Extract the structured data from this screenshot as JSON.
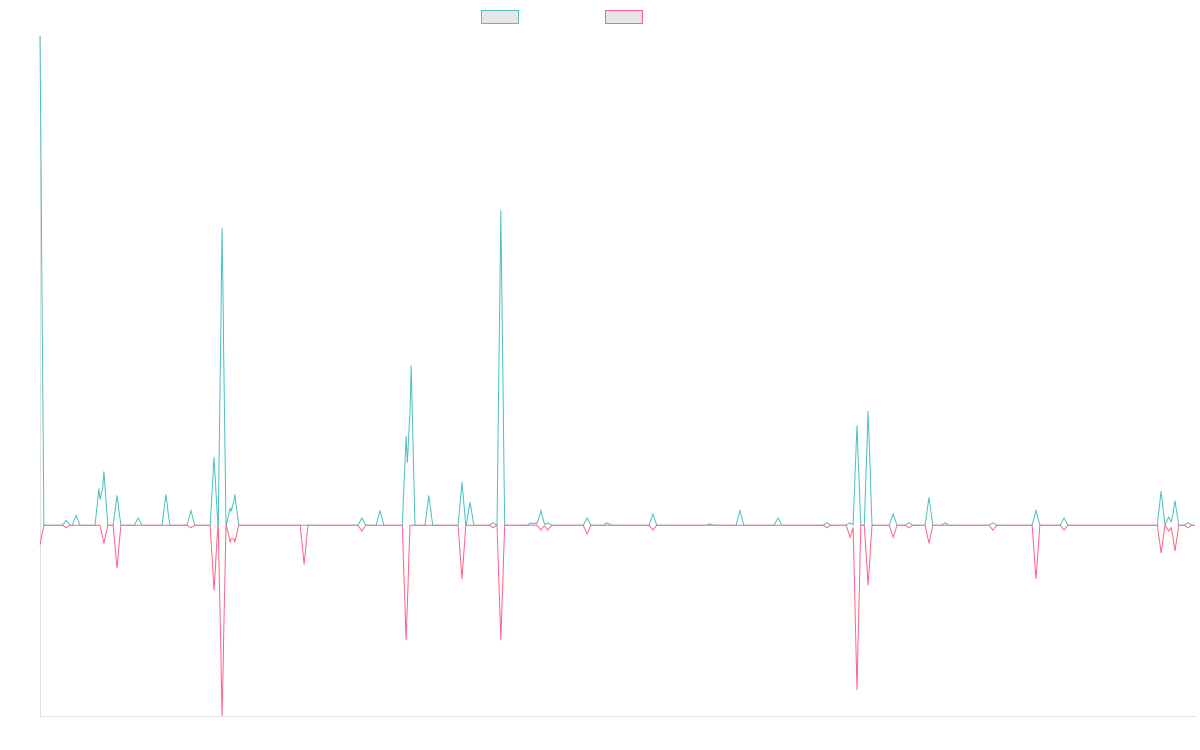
{
  "chart_data": {
    "type": "line",
    "title": "",
    "xlabel": "",
    "ylabel": "",
    "xlim": [
      0,
      300
    ],
    "ylim": [
      -39,
      100
    ],
    "grid": false,
    "legend_placement": "top-center",
    "series": [
      {
        "name": "",
        "color": "#4bc0c0",
        "points": [
          [
            0,
            100
          ],
          [
            6.8,
            1
          ],
          [
            9.4,
            2
          ],
          [
            15.3,
            7.5
          ],
          [
            16.6,
            11
          ],
          [
            20,
            6.1
          ],
          [
            25.5,
            1.5
          ],
          [
            32.7,
            6.3
          ],
          [
            39.2,
            3
          ],
          [
            45.2,
            13.9
          ],
          [
            47.3,
            60.7
          ],
          [
            49.4,
            3.5
          ],
          [
            50.6,
            6.3
          ],
          [
            83.6,
            1.5
          ],
          [
            88.3,
            3
          ],
          [
            95.1,
            18.2
          ],
          [
            96.4,
            32.7
          ],
          [
            101,
            6.1
          ],
          [
            109.6,
            8.8
          ],
          [
            111.7,
            4.7
          ],
          [
            117.7,
            0.5
          ],
          [
            119.7,
            64.4
          ],
          [
            127.5,
            0.5
          ],
          [
            128.8,
            0.5
          ],
          [
            130.1,
            3
          ],
          [
            131.9,
            0.5
          ],
          [
            142.1,
            1.5
          ],
          [
            147.3,
            0.5
          ],
          [
            159.2,
            2.3
          ],
          [
            174,
            0.3
          ],
          [
            181.8,
            3
          ],
          [
            191.7,
            1.5
          ],
          [
            204.4,
            0.5
          ],
          [
            210.4,
            0.5
          ],
          [
            212.2,
            20.4
          ],
          [
            215.1,
            23.3
          ],
          [
            221.6,
            2.3
          ],
          [
            225.7,
            0.5
          ],
          [
            230.9,
            5.7
          ],
          [
            235.1,
            0.5
          ],
          [
            247.5,
            0.5
          ],
          [
            258.7,
            3
          ],
          [
            266,
            1.5
          ],
          [
            291.2,
            7
          ],
          [
            293.2,
            1.7
          ],
          [
            294.8,
            5
          ],
          [
            298.2,
            0.5
          ]
        ]
      },
      {
        "name": "",
        "color": "#ff6384",
        "points": [
          [
            0,
            -4
          ],
          [
            6.8,
            -0.5
          ],
          [
            16.6,
            -3.7
          ],
          [
            20,
            -8.8
          ],
          [
            39.2,
            -0.5
          ],
          [
            45.2,
            -13.3
          ],
          [
            47.3,
            -39
          ],
          [
            49.4,
            -3.5
          ],
          [
            50.6,
            -3.5
          ],
          [
            68.6,
            -8
          ],
          [
            83.6,
            -1.2
          ],
          [
            95.1,
            -23.5
          ],
          [
            109.6,
            -11
          ],
          [
            117.7,
            -0.5
          ],
          [
            119.7,
            -23.5
          ],
          [
            130.1,
            -1
          ],
          [
            131.9,
            -1
          ],
          [
            142.1,
            -1.8
          ],
          [
            159.2,
            -1
          ],
          [
            204.4,
            -0.5
          ],
          [
            210.4,
            -2.5
          ],
          [
            212.2,
            -33.7
          ],
          [
            215.1,
            -12.3
          ],
          [
            221.6,
            -2.5
          ],
          [
            225.7,
            -0.5
          ],
          [
            230.9,
            -3.7
          ],
          [
            247.5,
            -1
          ],
          [
            258.7,
            -11
          ],
          [
            266,
            -1
          ],
          [
            291.2,
            -5.7
          ],
          [
            293.2,
            -1.2
          ],
          [
            294.8,
            -5.3
          ],
          [
            298.2,
            -0.5
          ]
        ]
      }
    ]
  }
}
